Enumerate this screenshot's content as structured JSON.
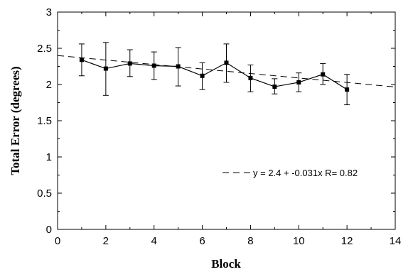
{
  "chart_data": {
    "type": "line",
    "xlabel": "Block",
    "ylabel": "Total Error  (degrees)",
    "xlim": [
      0,
      14
    ],
    "ylim": [
      0,
      3
    ],
    "x_ticks": [
      "0",
      "2",
      "4",
      "6",
      "8",
      "10",
      "12",
      "14"
    ],
    "y_ticks": [
      "0",
      "0.5",
      "1",
      "1.5",
      "2",
      "2.5",
      "3"
    ],
    "grid": false,
    "series": [
      {
        "x": [
          1,
          2,
          3,
          4,
          5,
          6,
          7,
          8,
          9,
          10,
          11,
          12
        ],
        "y": [
          2.34,
          2.22,
          2.29,
          2.26,
          2.25,
          2.12,
          2.3,
          2.09,
          1.97,
          2.03,
          2.14,
          1.93
        ],
        "error_low": [
          2.12,
          1.85,
          2.11,
          2.07,
          1.98,
          1.93,
          2.03,
          1.9,
          1.87,
          1.9,
          2.0,
          1.72
        ],
        "error_high": [
          2.56,
          2.58,
          2.48,
          2.45,
          2.51,
          2.3,
          2.56,
          2.27,
          2.08,
          2.16,
          2.29,
          2.14
        ],
        "marker": "square",
        "line_style": "solid"
      }
    ],
    "fit": {
      "intercept": 2.4,
      "slope": -0.031,
      "x_range": [
        0,
        14
      ],
      "line_style": "dashed"
    },
    "legend": {
      "text": "y = 2.4 + -0.031x R= 0.82",
      "placement": "lower-right"
    }
  }
}
